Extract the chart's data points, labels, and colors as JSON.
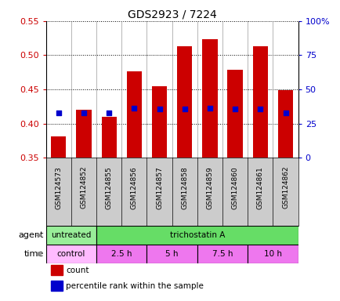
{
  "title": "GDS2923 / 7224",
  "samples": [
    "GSM124573",
    "GSM124852",
    "GSM124855",
    "GSM124856",
    "GSM124857",
    "GSM124858",
    "GSM124859",
    "GSM124860",
    "GSM124861",
    "GSM124862"
  ],
  "count_values": [
    0.381,
    0.42,
    0.41,
    0.476,
    0.455,
    0.513,
    0.524,
    0.479,
    0.513,
    0.449
  ],
  "percentile_values": [
    0.416,
    0.416,
    0.416,
    0.423,
    0.422,
    0.422,
    0.423,
    0.422,
    0.422,
    0.416
  ],
  "ylim_left": [
    0.35,
    0.55
  ],
  "ylim_right": [
    0,
    100
  ],
  "yticks_left": [
    0.35,
    0.4,
    0.45,
    0.5,
    0.55
  ],
  "yticks_right": [
    0,
    25,
    50,
    75,
    100
  ],
  "ytick_labels_right": [
    "0",
    "25",
    "50",
    "75",
    "100%"
  ],
  "bar_color": "#cc0000",
  "dot_color": "#0000cc",
  "bar_width": 0.6,
  "agent_groups": [
    {
      "label": "untreated",
      "start": 0,
      "end": 2,
      "color": "#99ee99"
    },
    {
      "label": "trichostatin A",
      "start": 2,
      "end": 10,
      "color": "#66dd66"
    }
  ],
  "time_groups": [
    {
      "label": "control",
      "start": 0,
      "end": 2,
      "color": "#ffbbff"
    },
    {
      "label": "2.5 h",
      "start": 2,
      "end": 4,
      "color": "#ee77ee"
    },
    {
      "label": "5 h",
      "start": 4,
      "end": 6,
      "color": "#ee77ee"
    },
    {
      "label": "7.5 h",
      "start": 6,
      "end": 8,
      "color": "#ee77ee"
    },
    {
      "label": "10 h",
      "start": 8,
      "end": 10,
      "color": "#ee77ee"
    }
  ],
  "legend_items": [
    {
      "label": "count",
      "color": "#cc0000"
    },
    {
      "label": "percentile rank within the sample",
      "color": "#0000cc"
    }
  ],
  "bg_color": "#ffffff",
  "left_tick_color": "#cc0000",
  "right_tick_color": "#0000cc",
  "bar_bottom": 0.35,
  "label_bg_color": "#cccccc",
  "outer_border_color": "#000000"
}
